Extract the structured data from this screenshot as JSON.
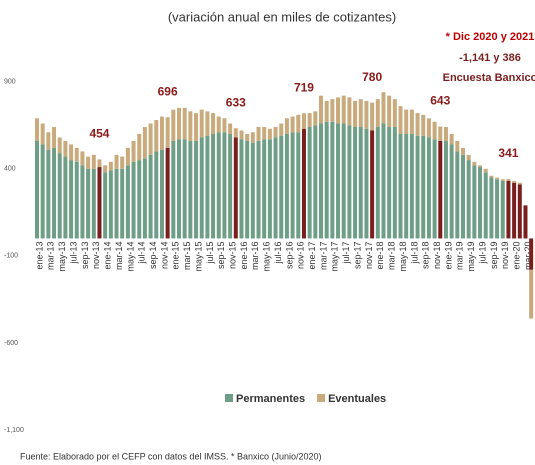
{
  "chart_data": {
    "type": "bar",
    "stacked": true,
    "title": "(variación anual en miles de cotizantes)",
    "note": [
      "* Dic 2020 y 2021",
      "-1,141 y 386",
      "Encuesta Banxico"
    ],
    "source": "Fuente: Elaborado por el CEFP con datos del IMSS. * Banxico (Junio/2020)",
    "categories": [
      "ene-13",
      null,
      "mar-13",
      null,
      "may-13",
      null,
      "jul-13",
      null,
      "sep-13",
      null,
      "nov-13",
      null,
      "ene-14",
      null,
      "mar-14",
      null,
      "may-14",
      null,
      "jul-14",
      null,
      "sep-14",
      null,
      "nov-14",
      null,
      "ene-15",
      null,
      "mar-15",
      null,
      "may-15",
      null,
      "jul-15",
      null,
      "sep-15",
      null,
      "nov-15",
      null,
      "ene-16",
      null,
      "mar-16",
      null,
      "may-16",
      null,
      "jul-16",
      null,
      "sep-16",
      null,
      "nov-16",
      null,
      "ene-17",
      null,
      "mar-17",
      null,
      "may-17",
      null,
      "jul-17",
      null,
      "sep-17",
      null,
      "nov-17",
      null,
      "ene-18",
      null,
      "mar-18",
      null,
      "may-18",
      null,
      "jul-18",
      null,
      "sep-18",
      null,
      "nov-18",
      null,
      "ene-19",
      null,
      "mar-19",
      null,
      "may-19",
      null,
      "jul-19",
      null,
      "sep-19",
      null,
      "nov-19",
      null,
      "ene-20",
      null,
      "mar-20",
      null
    ],
    "series": [
      {
        "name": "Permanentes",
        "color": "#6f9e87",
        "values": [
          560,
          540,
          510,
          520,
          490,
          470,
          450,
          440,
          420,
          400,
          400,
          410,
          380,
          390,
          400,
          400,
          420,
          440,
          450,
          460,
          480,
          500,
          510,
          520,
          560,
          570,
          570,
          560,
          560,
          580,
          590,
          600,
          610,
          610,
          600,
          580,
          570,
          560,
          550,
          560,
          570,
          570,
          580,
          590,
          600,
          610,
          610,
          630,
          640,
          650,
          660,
          670,
          670,
          660,
          660,
          650,
          640,
          640,
          630,
          620,
          640,
          660,
          640,
          640,
          600,
          600,
          600,
          590,
          590,
          580,
          570,
          560,
          560,
          540,
          500,
          480,
          450,
          420,
          410,
          380,
          350,
          340,
          330,
          330,
          320,
          310,
          190,
          -180
        ]
      },
      {
        "name": "Eventuales",
        "color": "#c9aa7c",
        "values": [
          130,
          120,
          100,
          120,
          90,
          90,
          90,
          80,
          80,
          70,
          80,
          44,
          40,
          50,
          80,
          70,
          100,
          120,
          150,
          180,
          180,
          180,
          190,
          176,
          180,
          180,
          180,
          170,
          160,
          160,
          140,
          120,
          90,
          80,
          60,
          53,
          50,
          40,
          60,
          80,
          70,
          60,
          60,
          70,
          90,
          90,
          100,
          89,
          80,
          80,
          160,
          120,
          130,
          150,
          160,
          160,
          150,
          160,
          160,
          160,
          160,
          180,
          180,
          160,
          160,
          140,
          140,
          130,
          120,
          110,
          100,
          83,
          80,
          60,
          60,
          40,
          30,
          20,
          10,
          20,
          10,
          10,
          10,
          11,
          10,
          10,
          0,
          -280
        ]
      }
    ],
    "highlight": [
      11,
      23,
      35,
      47,
      59,
      71,
      83,
      84,
      85,
      86,
      87
    ],
    "highlight_color": "#7a1f1f",
    "annotations": [
      454,
      696,
      633,
      719,
      780,
      643,
      341
    ],
    "ylim": [
      -1100,
      1200
    ],
    "yticks": [
      {
        "value": -1100,
        "label": "-1,100"
      },
      -600,
      -100,
      400,
      900
    ],
    "legend": "bottom"
  }
}
